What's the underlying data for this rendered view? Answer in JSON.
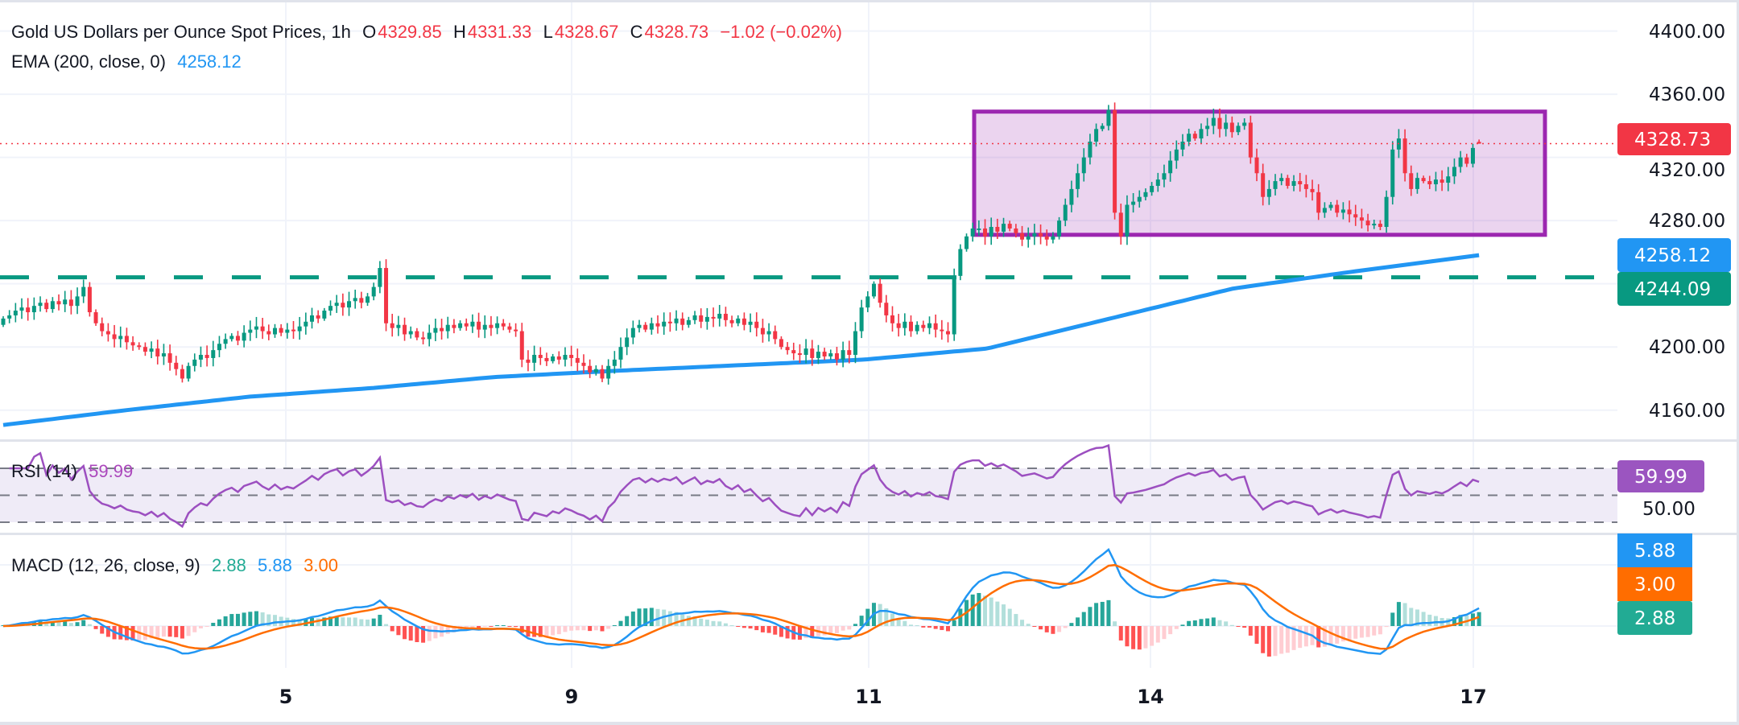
{
  "header": {
    "symbol_title": "Gold US Dollars per Ounce Spot Prices, 1h",
    "open_label": "O",
    "open": "4329.85",
    "high_label": "H",
    "high": "4331.33",
    "low_label": "L",
    "low": "4328.67",
    "close_label": "C",
    "close": "4328.73",
    "change": "−1.02 (−0.02%)",
    "ema_label": "EMA (200, close, 0)",
    "ema_value": "4258.12"
  },
  "rsi": {
    "label": "RSI (14)",
    "value": "59.99",
    "axis_hidden_label": "50.00"
  },
  "macd": {
    "label": "MACD (12, 26, close, 9)",
    "histogram": "2.88",
    "macd": "5.88",
    "signal": "3.00"
  },
  "price_axis": {
    "ticks": [
      "4400.00",
      "4360.00",
      "4320.00",
      "4280.00",
      "4200.00",
      "4160.00"
    ],
    "last_price_badge": "4328.73",
    "ema_badge": "4258.12",
    "support_badge": "4244.09"
  },
  "time_axis": {
    "ticks": [
      "5",
      "9",
      "11",
      "14",
      "17"
    ]
  },
  "colors": {
    "up": "#089981",
    "down": "#F23645",
    "ema": "#2196F3",
    "rsi": "#9C4FC0",
    "macd": "#2196F3",
    "signal": "#FF6D00",
    "hist_up": "#26A69A",
    "hist_up_weak": "#B2DFDB",
    "hist_down": "#FF5252",
    "hist_down_weak": "#FFCDD2",
    "range_box": "#9C27B0",
    "support_line": "#089981"
  },
  "chart_data": {
    "type": "candlestick",
    "title": "Gold US Dollars per Ounce Spot Prices, 1h",
    "xlabel": "",
    "ylabel": "",
    "ylim": [
      4140,
      4410
    ],
    "x_ticks": [
      "5",
      "9",
      "11",
      "14",
      "17"
    ],
    "y_ticks": [
      4160,
      4200,
      4240,
      4280,
      4320,
      4360,
      4400
    ],
    "grid": true,
    "close": [
      4218,
      4220,
      4223,
      4225,
      4222,
      4226,
      4228,
      4224,
      4229,
      4227,
      4230,
      4226,
      4232,
      4238,
      4222,
      4215,
      4210,
      4208,
      4205,
      4207,
      4203,
      4201,
      4200,
      4197,
      4199,
      4194,
      4196,
      4190,
      4186,
      4180,
      4188,
      4192,
      4195,
      4193,
      4198,
      4202,
      4205,
      4207,
      4204,
      4209,
      4211,
      4213,
      4210,
      4208,
      4212,
      4209,
      4211,
      4210,
      4213,
      4216,
      4220,
      4218,
      4223,
      4226,
      4228,
      4225,
      4229,
      4231,
      4228,
      4232,
      4238,
      4250,
      4215,
      4212,
      4214,
      4208,
      4210,
      4206,
      4205,
      4209,
      4212,
      4210,
      4214,
      4212,
      4215,
      4213,
      4216,
      4211,
      4214,
      4212,
      4215,
      4213,
      4211,
      4210,
      4192,
      4190,
      4195,
      4193,
      4191,
      4194,
      4192,
      4195,
      4193,
      4190,
      4188,
      4184,
      4186,
      4180,
      4188,
      4192,
      4200,
      4206,
      4212,
      4214,
      4211,
      4215,
      4213,
      4216,
      4215,
      4218,
      4214,
      4217,
      4220,
      4216,
      4219,
      4218,
      4221,
      4217,
      4215,
      4218,
      4214,
      4216,
      4212,
      4208,
      4210,
      4205,
      4200,
      4198,
      4196,
      4195,
      4199,
      4193,
      4197,
      4194,
      4196,
      4192,
      4198,
      4195,
      4210,
      4225,
      4232,
      4240,
      4228,
      4220,
      4215,
      4212,
      4216,
      4210,
      4214,
      4212,
      4215,
      4211,
      4210,
      4208,
      4245,
      4262,
      4270,
      4275,
      4275,
      4270,
      4276,
      4273,
      4278,
      4275,
      4272,
      4268,
      4270,
      4272,
      4270,
      4268,
      4270,
      4280,
      4290,
      4300,
      4310,
      4320,
      4330,
      4338,
      4340,
      4350,
      4285,
      4270,
      4290,
      4292,
      4295,
      4298,
      4302,
      4306,
      4310,
      4318,
      4325,
      4330,
      4335,
      4332,
      4338,
      4340,
      4345,
      4338,
      4342,
      4336,
      4340,
      4342,
      4320,
      4310,
      4295,
      4300,
      4305,
      4307,
      4302,
      4305,
      4303,
      4300,
      4298,
      4285,
      4288,
      4290,
      4285,
      4287,
      4284,
      4282,
      4280,
      4277,
      4278,
      4276,
      4295,
      4325,
      4332,
      4310,
      4300,
      4307,
      4305,
      4303,
      4306,
      4304,
      4308,
      4314,
      4320,
      4316,
      4326,
      4328.73
    ],
    "last_bar": {
      "open": 4329.85,
      "high": 4331.33,
      "low": 4328.67,
      "close": 4328.73
    },
    "ema_200_sampled": [
      4150.6,
      4160,
      4168.5,
      4174,
      4181,
      4185,
      4188.5,
      4192,
      4199,
      4218,
      4237,
      4248,
      4258.12
    ],
    "support_level": 4244.09,
    "range_box": {
      "top": 4349,
      "bottom": 4271
    },
    "rsi_levels": [
      30,
      50,
      70
    ],
    "rsi_last": 59.99,
    "macd_last": {
      "macd": 5.88,
      "signal": 3.0,
      "histogram": 2.88
    }
  }
}
